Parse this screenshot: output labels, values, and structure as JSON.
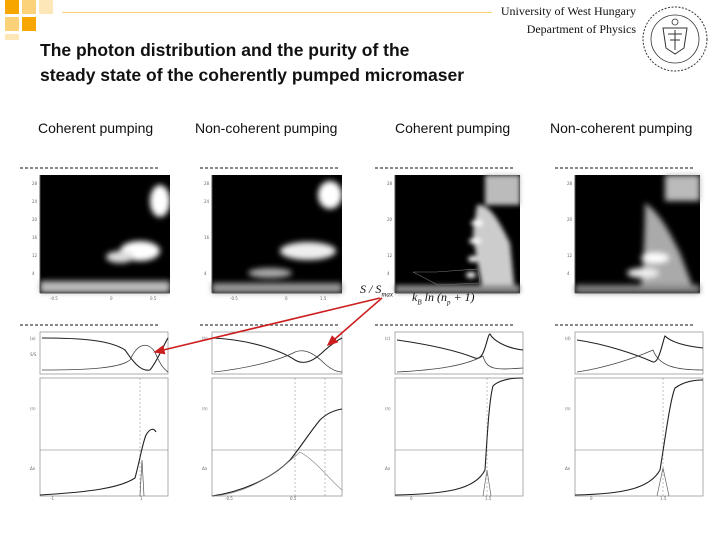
{
  "header": {
    "title_line1": "The photon distribution and the purity of the",
    "title_line2": "steady state of the coherently pumped micromaser",
    "institution": "University of West Hungary",
    "department": "Department of Physics",
    "seal_icon": "university-seal-icon"
  },
  "columns": [
    {
      "label": "Coherent pumping"
    },
    {
      "label": "Non-coherent pumping"
    },
    {
      "label": "Coherent pumping"
    },
    {
      "label": "Non-coherent pumping"
    }
  ],
  "annotations": {
    "purity_ratio": "S / S",
    "purity_ratio_sub": "max",
    "formula": "k",
    "formula_rest": "ln (n",
    "formula_tail": "+ 1)"
  },
  "colors": {
    "accent_orange": "#f7a600",
    "accent_light": "#fbd27a",
    "arrow_red": "#cc1f1f",
    "heatmap_bg": "#000000"
  }
}
